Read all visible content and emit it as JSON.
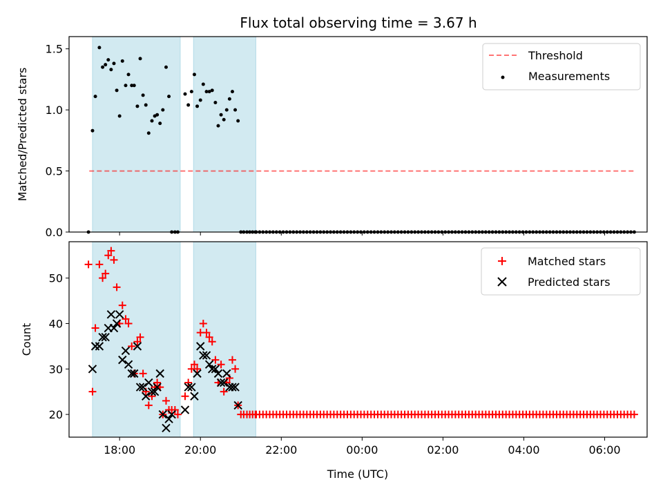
{
  "title": "Flux total observing time = 3.67 h",
  "colors": {
    "threshold": "#ff0000",
    "measurement": "#000000",
    "matched": "#ff0000",
    "predicted": "#000000",
    "span": "#add8e6"
  },
  "chart_data": [
    {
      "type": "scatter",
      "panel": "top",
      "ylabel": "Matched/Predicted stars",
      "xlim": [
        16.75,
        31.05
      ],
      "ylim": [
        0,
        1.6
      ],
      "yticks": [
        0.0,
        0.5,
        1.0,
        1.5
      ],
      "ytick_labels": [
        "0.0",
        "0.5",
        "1.0",
        "1.5"
      ],
      "legend": {
        "position": "top-right",
        "entries": [
          "Threshold",
          "Measurements"
        ]
      },
      "spans": [
        [
          17.33,
          19.5
        ],
        [
          19.83,
          21.37
        ]
      ],
      "threshold": {
        "value": 0.5,
        "x": [
          17.25,
          30.75
        ]
      },
      "series": [
        {
          "name": "Measurements",
          "marker": "dot",
          "x": [
            17.23,
            17.33,
            17.4,
            17.5,
            17.58,
            17.65,
            17.72,
            17.79,
            17.86,
            17.93,
            18.0,
            18.07,
            18.15,
            18.22,
            18.3,
            18.36,
            18.44,
            18.51,
            18.58,
            18.65,
            18.72,
            18.8,
            18.87,
            18.93,
            19.0,
            19.07,
            19.15,
            19.22,
            19.29,
            19.37,
            19.44,
            19.62,
            19.7,
            19.78,
            19.85,
            19.92,
            20.0,
            20.07,
            20.15,
            20.22,
            20.29,
            20.37,
            20.44,
            20.51,
            20.58,
            20.65,
            20.72,
            20.79,
            20.86,
            20.93,
            21.0,
            21.07,
            21.15,
            21.22,
            21.29,
            21.36
          ],
          "y": [
            0.0,
            0.83,
            1.11,
            1.51,
            1.35,
            1.37,
            1.41,
            1.33,
            1.38,
            1.16,
            0.95,
            1.4,
            1.2,
            1.29,
            1.2,
            1.2,
            1.03,
            1.42,
            1.12,
            1.04,
            0.81,
            0.91,
            0.95,
            0.96,
            0.89,
            1.0,
            1.35,
            1.11,
            0.0,
            0.0,
            0.0,
            1.13,
            1.04,
            1.15,
            1.29,
            1.03,
            1.08,
            1.21,
            1.15,
            1.15,
            1.16,
            1.06,
            0.87,
            0.96,
            0.92,
            1.0,
            1.09,
            1.15,
            1.0,
            0.91,
            0.0,
            0.0,
            0.0,
            0.0,
            0.0,
            0.0
          ]
        },
        {
          "name": "Measurements (zero tail)",
          "marker": "dot",
          "x_start": 21.38,
          "x_end": 30.75,
          "step": 0.0835,
          "y": 0.0
        }
      ]
    },
    {
      "type": "scatter",
      "panel": "bottom",
      "xlabel": "Time (UTC)",
      "ylabel": "Count",
      "xlim": [
        16.75,
        31.05
      ],
      "ylim": [
        15,
        58
      ],
      "xticks": [
        18,
        20,
        22,
        24,
        26,
        28,
        30
      ],
      "xtick_labels": [
        "18:00",
        "20:00",
        "22:00",
        "00:00",
        "02:00",
        "04:00",
        "06:00"
      ],
      "yticks": [
        20,
        30,
        40,
        50
      ],
      "ytick_labels": [
        "20",
        "30",
        "40",
        "50"
      ],
      "legend": {
        "position": "top-right",
        "entries": [
          "Matched stars",
          "Predicted stars"
        ]
      },
      "spans": [
        [
          17.33,
          19.5
        ],
        [
          19.83,
          21.37
        ]
      ],
      "series": [
        {
          "name": "Matched stars",
          "marker": "plus",
          "x": [
            17.23,
            17.33,
            17.4,
            17.5,
            17.58,
            17.65,
            17.72,
            17.79,
            17.86,
            17.93,
            18.0,
            18.07,
            18.15,
            18.22,
            18.3,
            18.36,
            18.44,
            18.51,
            18.58,
            18.65,
            18.72,
            18.8,
            18.87,
            18.93,
            19.0,
            19.07,
            19.15,
            19.22,
            19.29,
            19.37,
            19.44,
            19.62,
            19.7,
            19.78,
            19.85,
            19.92,
            20.0,
            20.07,
            20.15,
            20.22,
            20.29,
            20.37,
            20.44,
            20.51,
            20.58,
            20.65,
            20.72,
            20.79,
            20.86,
            20.93,
            21.0,
            21.07,
            21.15,
            21.22,
            21.29,
            21.36
          ],
          "y": [
            53,
            25,
            39,
            53,
            50,
            51,
            55,
            56,
            54,
            48,
            40,
            44,
            41,
            40,
            35,
            29,
            36,
            37,
            29,
            25,
            22,
            24,
            26,
            27,
            26,
            20,
            23,
            21,
            21,
            21,
            20,
            24,
            27,
            30,
            31,
            30,
            38,
            40,
            38,
            37,
            36,
            32,
            27,
            31,
            25,
            27,
            28,
            32,
            30,
            22,
            20,
            20,
            20,
            20,
            20,
            20
          ]
        },
        {
          "name": "Matched stars (flat tail)",
          "marker": "plus",
          "x_start": 21.38,
          "x_end": 30.75,
          "step": 0.0835,
          "y": 20
        },
        {
          "name": "Predicted stars",
          "marker": "x",
          "x": [
            17.33,
            17.4,
            17.5,
            17.58,
            17.65,
            17.72,
            17.79,
            17.86,
            17.93,
            18.0,
            18.07,
            18.15,
            18.22,
            18.3,
            18.36,
            18.44,
            18.51,
            18.58,
            18.65,
            18.72,
            18.8,
            18.87,
            18.93,
            19.0,
            19.07,
            19.15,
            19.22,
            19.29,
            19.62,
            19.7,
            19.78,
            19.85,
            19.92,
            20.0,
            20.07,
            20.15,
            20.22,
            20.29,
            20.37,
            20.44,
            20.51,
            20.58,
            20.65,
            20.72,
            20.79,
            20.86,
            20.93
          ],
          "y": [
            30,
            35,
            35,
            37,
            37,
            39,
            42,
            39,
            40,
            42,
            32,
            34,
            31,
            29,
            29,
            35,
            26,
            26,
            24,
            27,
            25,
            25,
            26,
            29,
            20,
            17,
            19,
            20,
            21,
            26,
            26,
            24,
            29,
            35,
            33,
            33,
            31,
            30,
            30,
            29,
            27,
            27,
            29,
            26,
            26,
            26,
            22
          ]
        }
      ]
    }
  ]
}
